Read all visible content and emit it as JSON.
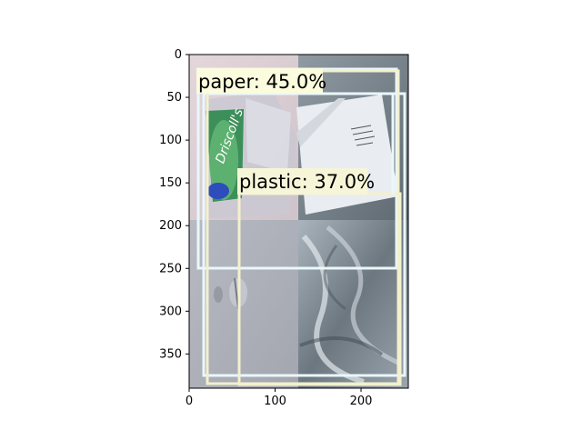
{
  "figure": {
    "x_axis": {
      "range": [
        0,
        255
      ],
      "ticks": [
        0,
        100,
        200
      ]
    },
    "y_axis": {
      "range": [
        0,
        390
      ],
      "inverted": true,
      "ticks": [
        0,
        50,
        100,
        150,
        200,
        250,
        300,
        350
      ]
    },
    "image": {
      "tiles": [
        {
          "name": "strawberry-clamshell-photo",
          "brand_text": "Driscoll's"
        },
        {
          "name": "paper-envelope-photo"
        },
        {
          "name": "plastic-cup-photo"
        },
        {
          "name": "plastic-bag-photo"
        }
      ]
    },
    "detections": [
      {
        "label": "paper: 45.0%",
        "color": "#fbfbdd"
      },
      {
        "label": "plastic: 37.0%",
        "color": "#f6f5d8"
      }
    ],
    "colors": {
      "box_light": "#eaf7fb",
      "box_cream": "#f3f0cd"
    }
  }
}
